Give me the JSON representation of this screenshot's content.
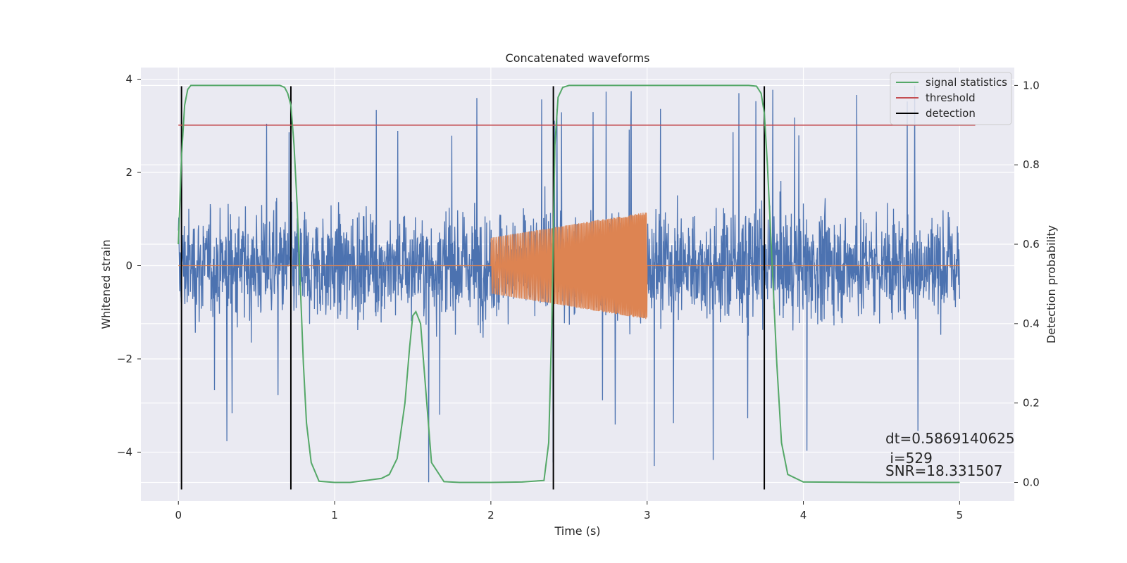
{
  "chart_data": {
    "type": "line",
    "title": "Concatenated waveforms",
    "xlabel": "Time (s)",
    "ylabel": "Whitened strain",
    "ylabel_right": "Detection probability",
    "xlim": [
      -0.24,
      5.35
    ],
    "ylim": [
      -5.05,
      4.25
    ],
    "ylim_right": [
      -0.047,
      1.045
    ],
    "x_ticks": [
      0,
      1,
      2,
      3,
      4,
      5
    ],
    "y_ticks": [
      -4,
      -2,
      0,
      2,
      4
    ],
    "y_ticks_right": [
      0.0,
      0.2,
      0.4,
      0.6,
      0.8,
      1.0
    ],
    "grid": true,
    "legend_position": "top-right",
    "colors": {
      "noise": "#4c72b0",
      "injection": "#dd8452",
      "signal_statistics": "#55a868",
      "threshold": "#c44e52",
      "detection": "#000000",
      "plot_background": "#eaeaf2",
      "grid": "#ffffff"
    },
    "series": [
      {
        "name": "signal statistics",
        "axis": "right",
        "x": [
          0.0,
          0.02,
          0.04,
          0.06,
          0.08,
          0.1,
          0.15,
          0.2,
          0.3,
          0.4,
          0.5,
          0.6,
          0.65,
          0.68,
          0.7,
          0.72,
          0.74,
          0.76,
          0.78,
          0.8,
          0.82,
          0.85,
          0.9,
          1.0,
          1.1,
          1.2,
          1.3,
          1.35,
          1.4,
          1.45,
          1.48,
          1.5,
          1.52,
          1.55,
          1.58,
          1.62,
          1.7,
          1.8,
          2.0,
          2.2,
          2.34,
          2.37,
          2.39,
          2.41,
          2.43,
          2.46,
          2.5,
          2.6,
          3.0,
          3.5,
          3.65,
          3.7,
          3.73,
          3.75,
          3.77,
          3.8,
          3.83,
          3.86,
          3.9,
          4.0,
          4.5,
          4.9,
          5.0
        ],
        "y": [
          0.6,
          0.82,
          0.95,
          0.99,
          1.0,
          1.0,
          1.0,
          1.0,
          1.0,
          1.0,
          1.0,
          1.0,
          1.0,
          0.995,
          0.98,
          0.95,
          0.85,
          0.7,
          0.5,
          0.3,
          0.15,
          0.05,
          0.003,
          0.0,
          0.0,
          0.005,
          0.01,
          0.02,
          0.06,
          0.2,
          0.34,
          0.42,
          0.43,
          0.4,
          0.25,
          0.05,
          0.002,
          0.0,
          0.0,
          0.001,
          0.005,
          0.1,
          0.4,
          0.85,
          0.97,
          0.995,
          1.0,
          1.0,
          1.0,
          1.0,
          1.0,
          0.998,
          0.98,
          0.93,
          0.8,
          0.55,
          0.3,
          0.1,
          0.02,
          0.001,
          0.0,
          0.0,
          0.0
        ]
      },
      {
        "name": "threshold",
        "axis": "right",
        "x": [
          0.0,
          5.1
        ],
        "y": [
          0.9,
          0.9
        ]
      },
      {
        "name": "detection",
        "axis": "left",
        "x": [
          0.02,
          0.72,
          2.4,
          3.75
        ],
        "y_range": [
          -4.8,
          3.85
        ]
      },
      {
        "axis": "left",
        "x_range": [
          0.0,
          5.0
        ],
        "amplitude": 1.0,
        "peak_range": [
          -4.8,
          3.9
        ]
      },
      {
        "axis": "left",
        "x_range": [
          2.0,
          3.0
        ],
        "amplitude_start": 0.6,
        "amplitude_end": 1.15
      }
    ]
  },
  "annotations": {
    "dt": "dt=0.5869140625",
    "i": " i=529",
    "snr": "SNR=18.331507"
  }
}
